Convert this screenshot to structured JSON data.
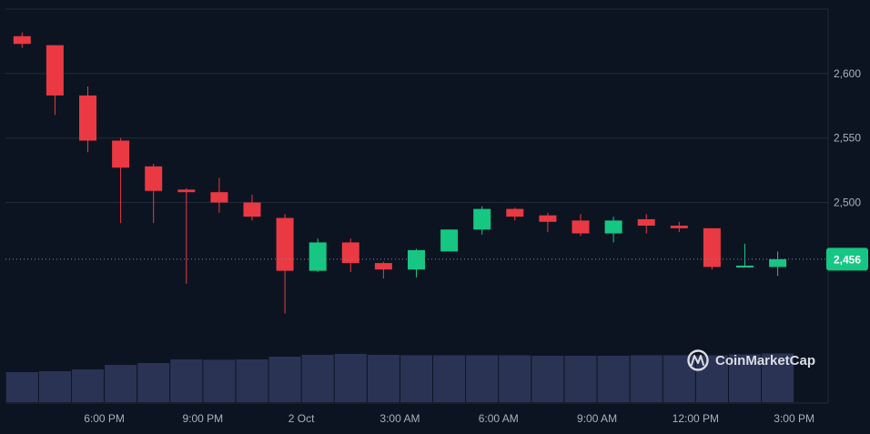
{
  "chart_data": {
    "type": "candlestick",
    "y_ticks": [
      "2,600",
      "2,550",
      "2,500"
    ],
    "y_tick_values": [
      2600,
      2550,
      2500
    ],
    "ylim": [
      2380,
      2650
    ],
    "x_labels": [
      "6:00 PM",
      "9:00 PM",
      "2 Oct",
      "3:00 AM",
      "6:00 AM",
      "9:00 AM",
      "12:00 PM",
      "3:00 PM"
    ],
    "x_label_candle_index": [
      2.5,
      5.5,
      8.5,
      11.5,
      14.5,
      17.5,
      20.5,
      23.5
    ],
    "current_price_label": "2,456",
    "current_price": 2456,
    "candles": [
      {
        "o": 2629,
        "h": 2632,
        "l": 2620,
        "c": 2623
      },
      {
        "o": 2622,
        "h": 2622,
        "l": 2568,
        "c": 2583
      },
      {
        "o": 2583,
        "h": 2590,
        "l": 2539,
        "c": 2548
      },
      {
        "o": 2548,
        "h": 2550,
        "l": 2484,
        "c": 2527
      },
      {
        "o": 2528,
        "h": 2530,
        "l": 2484,
        "c": 2509
      },
      {
        "o": 2510,
        "h": 2511,
        "l": 2437,
        "c": 2508
      },
      {
        "o": 2508,
        "h": 2519,
        "l": 2492,
        "c": 2500
      },
      {
        "o": 2500,
        "h": 2506,
        "l": 2486,
        "c": 2489
      },
      {
        "o": 2488,
        "h": 2491,
        "l": 2414,
        "c": 2447
      },
      {
        "o": 2447,
        "h": 2472,
        "l": 2446,
        "c": 2469
      },
      {
        "o": 2469,
        "h": 2472,
        "l": 2446,
        "c": 2453
      },
      {
        "o": 2453,
        "h": 2454,
        "l": 2441,
        "c": 2448
      },
      {
        "o": 2448,
        "h": 2464,
        "l": 2442,
        "c": 2463
      },
      {
        "o": 2462,
        "h": 2479,
        "l": 2462,
        "c": 2479
      },
      {
        "o": 2479,
        "h": 2497,
        "l": 2475,
        "c": 2495
      },
      {
        "o": 2495,
        "h": 2496,
        "l": 2486,
        "c": 2489
      },
      {
        "o": 2490,
        "h": 2492,
        "l": 2477,
        "c": 2485
      },
      {
        "o": 2486,
        "h": 2491,
        "l": 2474,
        "c": 2476
      },
      {
        "o": 2476,
        "h": 2489,
        "l": 2469,
        "c": 2486
      },
      {
        "o": 2487,
        "h": 2491,
        "l": 2476,
        "c": 2482
      },
      {
        "o": 2482,
        "h": 2485,
        "l": 2477,
        "c": 2480
      },
      {
        "o": 2480,
        "h": 2480,
        "l": 2448,
        "c": 2450
      },
      {
        "o": 2450,
        "h": 2468,
        "l": 2450,
        "c": 2451
      },
      {
        "o": 2450,
        "h": 2462,
        "l": 2443,
        "c": 2456
      }
    ],
    "volume_relative": [
      0.66,
      0.68,
      0.72,
      0.82,
      0.86,
      0.94,
      0.93,
      0.94,
      1.0,
      1.04,
      1.06,
      1.04,
      1.03,
      1.03,
      1.03,
      1.03,
      1.02,
      1.02,
      1.02,
      1.03,
      1.03,
      1.03,
      1.05,
      1.07
    ]
  },
  "watermark": {
    "text": "CoinMarketCap",
    "icon": "coinmarketcap-logo-icon"
  },
  "colors": {
    "background": "#0d1421",
    "up": "#16c784",
    "down": "#ea3943",
    "volume": "#2a3354",
    "grid": "#222a38",
    "axis_text": "#a8afbd"
  }
}
